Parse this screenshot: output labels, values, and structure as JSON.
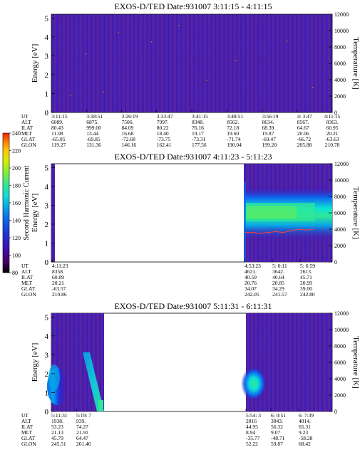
{
  "colorbar": {
    "label": "Second Harmonic Current",
    "ticks": [
      "80",
      "100",
      "120",
      "140",
      "160",
      "180",
      "200",
      "220",
      "240"
    ],
    "colors": [
      "#000000",
      "#4a006a",
      "#3b12b4",
      "#2233dd",
      "#0d66f0",
      "#06a6e8",
      "#0de0d6",
      "#2fe896",
      "#7af03c",
      "#d6f000",
      "#ffc800",
      "#ff7a00",
      "#ff1e00"
    ]
  },
  "panels": [
    {
      "title": "EXOS-D/TED   Date:931007   3:11:15 - 4:11:15",
      "ylabel_left": "Energy [eV]",
      "ylabel_right": "Temperature [K]",
      "yticks_left": [
        "0",
        "1",
        "2",
        "3",
        "4",
        "5"
      ],
      "yticks_right": [
        "0",
        "2000",
        "4000",
        "6000",
        "8000",
        "10000",
        "12000"
      ],
      "ephem_labels": [
        "UT",
        "ALT",
        "ILAT",
        "MLT",
        "GLAT",
        "GLON"
      ],
      "ephem_cols": [
        [
          "3:11:15",
          "6089.",
          "80.43",
          "11.08",
          "-65.05",
          "119.27"
        ],
        [
          "3:18:51",
          "6875.",
          "999.00",
          "13.44",
          "-69.85",
          "131.36"
        ],
        [
          "3:26:19",
          "7506.",
          "84.09",
          "16.68",
          "-72.68",
          "146.16"
        ],
        [
          "3:33:47",
          "7997.",
          "80.22",
          "18.40",
          "-73.75",
          "162.41"
        ],
        [
          "3:41:15",
          "8348.",
          "76.16",
          "19.17",
          "-73.31",
          "177.56"
        ],
        [
          "3:48:51",
          "8562.",
          "72.18",
          "19.60",
          "-71.74",
          "190.04"
        ],
        [
          "3:56:19",
          "8634.",
          "68.39",
          "19.87",
          "-69.47",
          "199.20"
        ],
        [
          "4: 3:47",
          "8567.",
          "64.67",
          "20.06",
          "-66.72",
          "205.88"
        ],
        [
          "4:11:15",
          "8363.",
          "60.95",
          "20.21",
          "-63.63",
          "210.78"
        ]
      ]
    },
    {
      "title": "EXOS-D/TED   Date:931007   4:11:23 - 5:11:23",
      "ylabel_left": "Energy [eV]",
      "ylabel_right": "Temperature [K]",
      "yticks_left": [
        "0",
        "1",
        "2",
        "3",
        "4",
        "5"
      ],
      "yticks_right": [
        "0",
        "2000",
        "4000",
        "6000",
        "8000",
        "10000",
        "12000"
      ],
      "ephem_labels": [
        "UT",
        "ALT",
        "ILAT",
        "MLT",
        "GLAT",
        "GLON"
      ],
      "ephem_cols": [
        [
          "4:11:23",
          "8358.",
          "60.89",
          "20.21",
          "-63.57",
          "210.86"
        ],
        [
          "4:53:23",
          "4621.",
          "40.50",
          "20.76",
          "34.07",
          "242.05"
        ],
        [
          "5: 0:11",
          "3642.",
          "40.64",
          "20.85",
          "34.29",
          "241.57"
        ],
        [
          "5: 6:59",
          "2613.",
          "45.71",
          "20.99",
          "39.00",
          "242.80"
        ]
      ]
    },
    {
      "title": "EXOS-D/TED   Date:931007   5:11:31 - 6:11:31",
      "ylabel_left": "Energy [eV]",
      "ylabel_right": "Temperature [K]",
      "yticks_left": [
        "0",
        "1",
        "2",
        "3",
        "4",
        "5"
      ],
      "yticks_right": [
        "0",
        "2000",
        "4000",
        "6000",
        "8000",
        "10000",
        "12000"
      ],
      "ephem_labels": [
        "UT",
        "ALT",
        "ILAT",
        "MLT",
        "GLAT",
        "GLON"
      ],
      "ephem_cols": [
        [
          "5:11:31",
          "1938.",
          "53.23",
          "21.13",
          "45.79",
          "245.51"
        ],
        [
          "5:19: 7",
          "939.",
          "74.27",
          "21.91",
          "64.47",
          "261.46"
        ],
        [
          "5:54: 3",
          "2816",
          "44.95",
          "8.94",
          "-35.77",
          "52.22"
        ],
        [
          "6: 0:51",
          "3843.",
          "56.32",
          "9.07",
          "-48.71",
          "59.87"
        ],
        [
          "6: 7:39",
          "4814.",
          "65.31",
          "9.23",
          "-58.28",
          "68.42"
        ]
      ]
    }
  ],
  "chart_data": [
    {
      "type": "heatmap",
      "title": "EXOS-D/TED   Date:931007   3:11:15 - 4:11:15",
      "ylabel": "Energy [eV]",
      "ylabel_right": "Temperature [K]",
      "ylim": [
        0,
        5.2
      ],
      "ylim_right": [
        0,
        12000
      ],
      "x_ticks": [
        "3:11:15",
        "3:18:51",
        "3:26:19",
        "3:33:47",
        "3:41:15",
        "3:48:51",
        "3:56:19",
        "4: 3:47",
        "4:11:15"
      ],
      "colorbar_label": "Second Harmonic Current",
      "colorbar_range": [
        80,
        240
      ],
      "note_visible": "background noise only, ~100-120 over full interval"
    },
    {
      "type": "heatmap",
      "title": "EXOS-D/TED   Date:931007   4:11:23 - 5:11:23",
      "ylabel": "Energy [eV]",
      "ylabel_right": "Temperature [K]",
      "ylim": [
        0,
        5.2
      ],
      "ylim_right": [
        0,
        12000
      ],
      "x_ticks": [
        "4:11:23",
        "4:53:23",
        "5: 0:11",
        "5: 6:59"
      ],
      "temperature_trace_K": [
        3600,
        3600,
        3500,
        3600,
        3700,
        3600,
        3800,
        4000,
        3900,
        4000
      ],
      "colorbar_label": "Second Harmonic Current",
      "colorbar_range": [
        80,
        240
      ]
    },
    {
      "type": "heatmap",
      "title": "EXOS-D/TED   Date:931007   5:11:31 - 6:11:31",
      "ylabel": "Energy [eV]",
      "ylabel_right": "Temperature [K]",
      "ylim": [
        0,
        5.2
      ],
      "ylim_right": [
        0,
        12000
      ],
      "x_ticks": [
        "5:11:31",
        "5:19: 7",
        "5:54: 3",
        "6: 0:51",
        "6: 7:39"
      ],
      "colorbar_label": "Second Harmonic Current",
      "colorbar_range": [
        80,
        240
      ]
    }
  ]
}
